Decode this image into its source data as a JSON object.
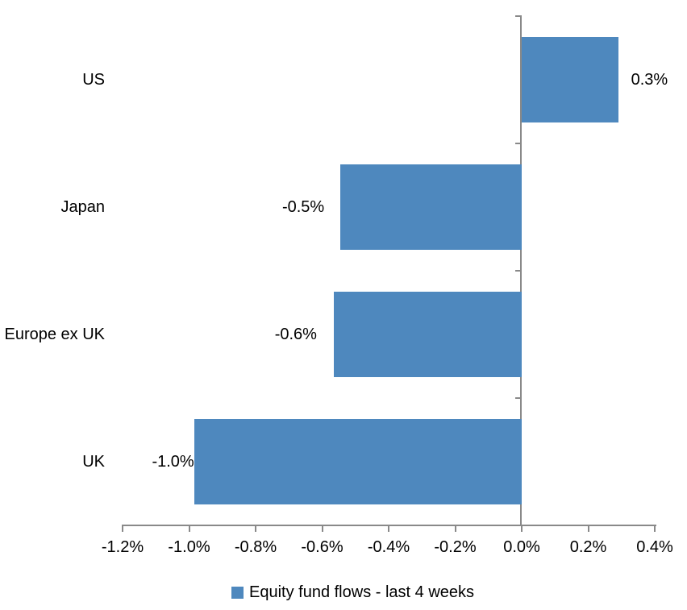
{
  "colors": {
    "bar": "#4E88BE",
    "axis": "#898989",
    "text": "#000000",
    "background": "#FFFFFF"
  },
  "legend": {
    "label": "Equity fund flows - last 4 weeks",
    "swatch_color": "#4E88BE",
    "position": "bottom"
  },
  "chart_data": {
    "type": "bar",
    "orientation": "horizontal",
    "title": "",
    "xlabel": "",
    "ylabel": "",
    "categories": [
      "US",
      "Japan",
      "Europe ex UK",
      "UK"
    ],
    "values": [
      0.3,
      -0.5,
      -0.6,
      -1.0
    ],
    "value_labels": [
      "0.3%",
      "-0.5%",
      "-0.6%",
      "-1.0%"
    ],
    "values_precise_pct": [
      0.29,
      -0.545,
      -0.565,
      -0.985
    ],
    "series_name": "Equity fund flows - last 4 weeks",
    "x_ticks": [
      "-1.2%",
      "-1.0%",
      "-0.8%",
      "-0.6%",
      "-0.4%",
      "-0.2%",
      "0.0%",
      "0.2%",
      "0.4%"
    ],
    "x_tick_values": [
      -1.2,
      -1.0,
      -0.8,
      -0.6,
      -0.4,
      -0.2,
      0.0,
      0.2,
      0.4
    ],
    "xlim": [
      -1.2,
      0.4
    ],
    "grid": false,
    "legend_position": "bottom"
  }
}
